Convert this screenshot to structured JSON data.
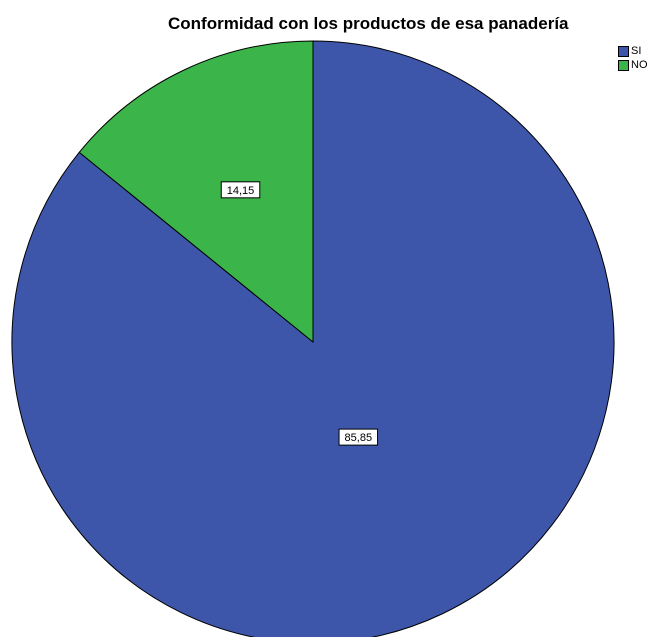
{
  "chart_data": {
    "type": "pie",
    "title": "Conformidad con los productos de esa panadería",
    "categories": [
      "SI",
      "NO"
    ],
    "values": [
      85.85,
      14.15
    ],
    "data_labels": [
      "85,85",
      "14,15"
    ],
    "colors": [
      "#3d56aa",
      "#3bb449"
    ],
    "legend": {
      "placement": "top-right",
      "entries": [
        "SI",
        "NO"
      ]
    }
  }
}
